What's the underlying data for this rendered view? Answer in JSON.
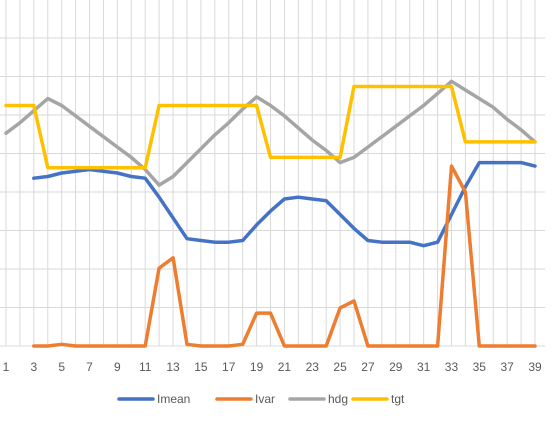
{
  "chart_data": {
    "type": "line",
    "x": [
      1,
      2,
      3,
      4,
      5,
      6,
      7,
      8,
      9,
      10,
      11,
      12,
      13,
      14,
      15,
      16,
      17,
      18,
      19,
      20,
      21,
      22,
      23,
      24,
      25,
      26,
      27,
      28,
      29,
      30,
      31,
      32,
      33,
      34,
      35,
      36,
      37,
      38,
      39
    ],
    "x_tick_labels": [
      "1",
      "3",
      "5",
      "7",
      "9",
      "11",
      "13",
      "15",
      "17",
      "19",
      "21",
      "23",
      "25",
      "27",
      "29",
      "31",
      "33",
      "35",
      "37",
      "39"
    ],
    "grid": true,
    "legend_position": "bottom",
    "series": [
      {
        "name": "Imean",
        "color": "#4472C4",
        "values": [
          null,
          null,
          0.485,
          0.49,
          0.5,
          0.505,
          0.51,
          0.505,
          0.5,
          0.49,
          0.485,
          0.43,
          0.37,
          0.31,
          0.305,
          0.3,
          0.3,
          0.305,
          0.35,
          0.39,
          0.425,
          0.43,
          0.425,
          0.42,
          0.38,
          0.34,
          0.305,
          0.3,
          0.3,
          0.3,
          0.29,
          0.3,
          0.38,
          0.46,
          0.53,
          0.53,
          0.53,
          0.53,
          0.52
        ]
      },
      {
        "name": "Ivar",
        "color": "#ED7D31",
        "values": [
          null,
          null,
          0.0,
          0.0,
          0.005,
          0.0,
          0.0,
          0.0,
          0.0,
          0.0,
          0.0,
          0.225,
          0.255,
          0.005,
          0.0,
          0.0,
          0.0,
          0.005,
          0.095,
          0.095,
          0.0,
          0.0,
          0.0,
          0.0,
          0.11,
          0.13,
          0.0,
          0.0,
          0.0,
          0.0,
          0.0,
          0.0,
          0.52,
          0.445,
          0.0,
          0.0,
          0.0,
          0.0,
          0.0
        ]
      },
      {
        "name": "hdg",
        "color": "#A5A5A5",
        "values": [
          0.615,
          0.645,
          0.68,
          0.715,
          0.695,
          0.665,
          0.635,
          0.605,
          0.575,
          0.545,
          0.51,
          0.465,
          0.49,
          0.53,
          0.57,
          0.61,
          0.645,
          0.685,
          0.72,
          0.695,
          0.665,
          0.63,
          0.595,
          0.565,
          0.53,
          0.545,
          0.575,
          0.605,
          0.635,
          0.665,
          0.695,
          0.73,
          0.765,
          0.74,
          0.715,
          0.69,
          0.655,
          0.625,
          0.59
        ]
      },
      {
        "name": "tgt",
        "color": "#FFC000",
        "values": [
          0.695,
          0.695,
          0.695,
          0.515,
          0.515,
          0.515,
          0.515,
          0.515,
          0.515,
          0.515,
          0.515,
          0.695,
          0.695,
          0.695,
          0.695,
          0.695,
          0.695,
          0.695,
          0.695,
          0.545,
          0.545,
          0.545,
          0.545,
          0.545,
          0.545,
          0.75,
          0.75,
          0.75,
          0.75,
          0.75,
          0.75,
          0.75,
          0.75,
          0.59,
          0.59,
          0.59,
          0.59,
          0.59,
          0.59
        ]
      }
    ]
  }
}
